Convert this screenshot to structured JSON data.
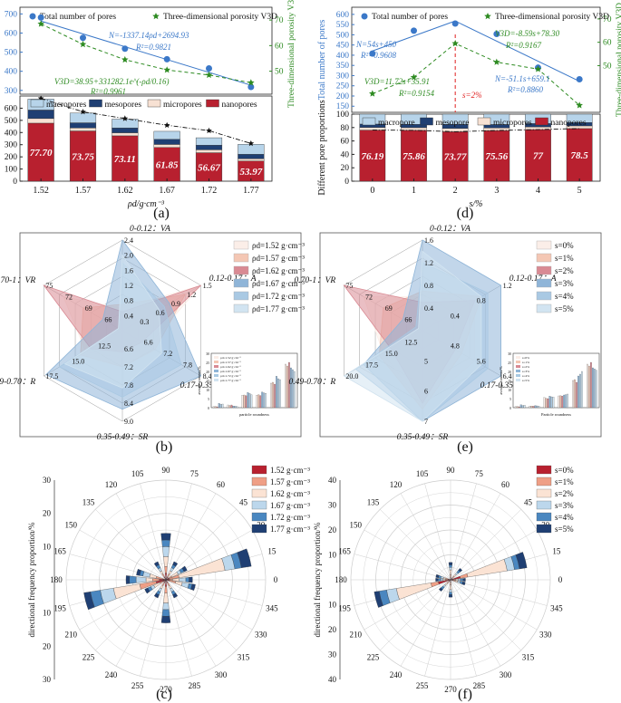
{
  "panel_labels": [
    "(a)",
    "(b)",
    "(c)",
    "(d)",
    "(e)",
    "(f)"
  ],
  "colors": {
    "blue_dot": "#3b78c8",
    "green": "#2e8b22",
    "nano": "#b8202f",
    "micro": "#f7e1d3",
    "meso": "#1f3f73",
    "macro": "#b7d4ea",
    "grid": "#d8d8d8"
  },
  "chart_data": [
    {
      "id": "a",
      "type": "bar",
      "xlabel": "ρd/g·cm⁻³",
      "ylabel_top": "Total number of pores",
      "ylabel_right": "Three-dimensional porosity V3D",
      "ylabel_bottom": "Different pore proportions",
      "categories": [
        "1.52",
        "1.57",
        "1.62",
        "1.67",
        "1.72",
        "1.77"
      ],
      "top_y_ticks": [
        "700",
        "600",
        "500",
        "400",
        "300"
      ],
      "right_y_ticks": [
        "70",
        "60",
        "50"
      ],
      "bottom_y_ticks": [
        "0",
        "100",
        "200",
        "300",
        "400",
        "500",
        "600"
      ],
      "legend_top": [
        "Total number of pores",
        "Three-dimensional porosity V3D"
      ],
      "legend_bottom": [
        "macropores",
        "mesopores",
        "micropores",
        "nanopores"
      ],
      "series": [
        {
          "name": "Total number of pores",
          "values": [
            681,
            575,
            518,
            463,
            415,
            318
          ]
        },
        {
          "name": "Three-dimensional porosity V3D",
          "values": [
            68.5,
            60.5,
            54.5,
            50.5,
            48.5,
            45.5
          ]
        }
      ],
      "bars": [
        {
          "nano": 477,
          "micro": 38,
          "meso": 70,
          "macro": 90,
          "label": "77.70"
        },
        {
          "nano": 413,
          "micro": 25,
          "meso": 42,
          "macro": 80,
          "label": "73.75"
        },
        {
          "nano": 373,
          "micro": 25,
          "meso": 40,
          "macro": 72,
          "label": "73.11"
        },
        {
          "nano": 277,
          "micro": 25,
          "meso": 42,
          "macro": 66,
          "label": "61.85"
        },
        {
          "nano": 234,
          "micro": 24,
          "meso": 38,
          "macro": 61,
          "label": "56.67"
        },
        {
          "nano": 166,
          "micro": 19,
          "meso": 36,
          "macro": 82,
          "label": "53.97"
        }
      ],
      "trend_totals": [
        680,
        570,
        515,
        460,
        415,
        310
      ],
      "annotations": [
        "N=-1337.14ρd+2694.93",
        "R²=0.9821",
        "V3D=38.95+331282.1e^(-ρd/0.16)",
        "R²=0.9961"
      ]
    },
    {
      "id": "d",
      "type": "bar",
      "xlabel": "s/%",
      "ylabel_top": "Total number of pores",
      "ylabel_right": "Three-dimensional porosity V3D",
      "ylabel_bottom": "Different pore proportions",
      "categories": [
        "0",
        "1",
        "2",
        "3",
        "4",
        "5"
      ],
      "top_y_ticks": [
        "600",
        "550",
        "500",
        "450",
        "400",
        "350",
        "300",
        "250",
        "200",
        "150"
      ],
      "right_y_ticks": [
        "70",
        "60",
        "50"
      ],
      "bottom_y_ticks": [
        "0",
        "20",
        "40",
        "60",
        "80",
        "100"
      ],
      "legend_top": [
        "Total number of pores",
        "Three-dimensional porosity V3D"
      ],
      "legend_bottom": [
        "macropore",
        "mesopore",
        "micropores",
        "nanopores"
      ],
      "series": [
        {
          "name": "Total number of pores",
          "values": [
            408,
            520,
            555,
            504,
            339,
            282
          ]
        },
        {
          "name": "Three-dimensional porosity V3D",
          "values": [
            38,
            45,
            59.5,
            51.5,
            48.5,
            33
          ]
        }
      ],
      "bars": [
        {
          "nano": 76.19,
          "micro": 4,
          "meso": 5,
          "macro": 14.81,
          "label": "76.19"
        },
        {
          "nano": 75.86,
          "micro": 4,
          "meso": 5,
          "macro": 15.14,
          "label": "75.86"
        },
        {
          "nano": 73.77,
          "micro": 5,
          "meso": 6,
          "macro": 15.23,
          "label": "73.77"
        },
        {
          "nano": 75.56,
          "micro": 4,
          "meso": 5,
          "macro": 15.44,
          "label": "75.56"
        },
        {
          "nano": 77,
          "micro": 4,
          "meso": 5,
          "macro": 14,
          "label": "77"
        },
        {
          "nano": 78.5,
          "micro": 4,
          "meso": 5,
          "macro": 12.5,
          "label": "78.5"
        }
      ],
      "trend_totals": [
        76.2,
        75.9,
        73.8,
        75.6,
        77,
        78.5
      ],
      "annotations": [
        "N=54s+450",
        "R²=0.9608",
        "V3D=11.72s+35.91",
        "R²=0.9154",
        "s=2%",
        "N=-51.1s+659.1",
        "R²=0.8860",
        "V3D=-8.59s+78.30",
        "R²=0.9167"
      ]
    },
    {
      "id": "b",
      "type": "radar",
      "axes": [
        "0-0.12：VA",
        "0.12-0.17：A",
        "0.17-0.35：SA",
        "0.35-0.49：SR",
        "0.49-0.70：R",
        "0.70-1：VR"
      ],
      "series_names": [
        "ρd=1.52 g·cm⁻³",
        "ρd=1.57 g·cm⁻³",
        "ρd=1.62 g·cm⁻³",
        "ρd=1.67 g·cm⁻³",
        "ρd=1.72 g·cm⁻³",
        "ρd=1.77 g·cm⁻³"
      ],
      "series_colors": [
        "#fbeee8",
        "#f4c7b4",
        "#d98a93",
        "#8fb5d8",
        "#a9c9e3",
        "#d2e4f1"
      ],
      "values": [
        [
          0.6,
          1.5,
          6.8,
          6.9,
          13.5,
          72
        ],
        [
          0.7,
          1.2,
          7.0,
          7.2,
          14.0,
          69
        ],
        [
          0.5,
          1.5,
          6.6,
          6.7,
          13.0,
          75
        ],
        [
          2.4,
          0.9,
          8.4,
          8.6,
          17.3,
          66
        ],
        [
          1.8,
          0.8,
          7.8,
          8.2,
          16.0,
          63
        ],
        [
          2.0,
          0.7,
          7.2,
          7.9,
          15.5,
          60
        ]
      ],
      "tick_labels": {
        "VA": [
          "0.4",
          "0.8",
          "1.2",
          "1.6",
          "2.0",
          "2.4"
        ],
        "A": [
          "0.3",
          "0.6",
          "0.9",
          "1.2",
          "1.5"
        ],
        "SA": [
          "6.6",
          "7.2",
          "7.8",
          "8.4"
        ],
        "SR": [
          "6.6",
          "7.2",
          "7.8",
          "8.4",
          "9.0"
        ],
        "R": [
          "12.5",
          "15.0",
          "17.5"
        ],
        "VR": [
          "66",
          "69",
          "72",
          "75"
        ]
      },
      "inset": {
        "xlabel": "particle roundness",
        "ylabel": "average contents/%",
        "legend": [
          "ρd=1.52 g·cm⁻³",
          "ρd=1.57 g·cm⁻³",
          "ρd=1.62 g·cm⁻³",
          "ρd=1.67 g·cm⁻³",
          "ρd=1.72 g·cm⁻³",
          "ρd=1.77 g·cm⁻³"
        ],
        "y_ticks": [
          "0",
          "5",
          "10",
          "15",
          "20",
          "25",
          "30"
        ]
      }
    },
    {
      "id": "e",
      "type": "radar",
      "axes": [
        "0-0.12：VA",
        "0.12-0.17：A",
        "0.17-0.35：SA",
        "0.35-0.49：SR",
        "0.49-0.70：R",
        "0.70-1：VR"
      ],
      "series_names": [
        "s=0%",
        "s=1%",
        "s=2%",
        "s=3%",
        "s=4%",
        "s=5%"
      ],
      "series_colors": [
        "#fbeee8",
        "#f4c7b4",
        "#d98a93",
        "#8fb5d8",
        "#a9c9e3",
        "#d2e4f1"
      ],
      "values": [
        [
          0.6,
          0.8,
          5.6,
          6.5,
          15.0,
          72
        ],
        [
          0.7,
          0.9,
          5.2,
          6.6,
          15.5,
          69
        ],
        [
          0.5,
          0.8,
          5.0,
          6.4,
          14.0,
          75
        ],
        [
          1.6,
          1.2,
          6.4,
          7.0,
          17.5,
          66
        ],
        [
          1.2,
          1.0,
          6.0,
          7.2,
          18.5,
          64
        ],
        [
          1.4,
          0.9,
          5.8,
          7.5,
          20.0,
          62
        ]
      ],
      "tick_labels": {
        "VA": [
          "0.4",
          "0.8",
          "1.2",
          "1.6"
        ],
        "A": [
          "0.4",
          "0.8",
          "1.2"
        ],
        "SA": [
          "4.8",
          "5.6",
          "6.4"
        ],
        "SR": [
          "5",
          "6",
          "7"
        ],
        "R": [
          "12.5",
          "15.0",
          "17.5",
          "20.0"
        ],
        "VR": [
          "66",
          "69",
          "72",
          "75"
        ]
      },
      "inset": {
        "xlabel": "Particle roundness",
        "ylabel": "average contents/%",
        "legend": [
          "s=0%",
          "s=1%",
          "s=2%",
          "s=3%",
          "s=4%",
          "s=5%"
        ],
        "y_ticks": [
          "0",
          "5",
          "10",
          "15",
          "20",
          "25",
          "30"
        ]
      }
    },
    {
      "id": "c",
      "type": "polar-bar",
      "radial_label": "directional frequency proportion/%",
      "radial_ticks": [
        "10",
        "20",
        "30"
      ],
      "series_names": [
        "1.52 g·cm⁻³",
        "1.57 g·cm⁻³",
        "1.62 g·cm⁻³",
        "1.67 g·cm⁻³",
        "1.72 g·cm⁻³",
        "1.77 g·cm⁻³"
      ],
      "series_colors": [
        "#b8202f",
        "#ef9f86",
        "#fbe3d4",
        "#bcd7ec",
        "#4a87c0",
        "#1f3f73"
      ],
      "sectors": [
        {
          "angle": 15,
          "vals": [
            1,
            3,
            14,
            3,
            2,
            3
          ]
        },
        {
          "angle": 195,
          "vals": [
            3,
            5,
            8,
            4,
            3,
            2
          ]
        },
        {
          "angle": 90,
          "vals": [
            2,
            2,
            3,
            3,
            2,
            2
          ]
        },
        {
          "angle": 270,
          "vals": [
            2,
            2,
            3,
            2,
            2,
            2
          ]
        },
        {
          "angle": 0,
          "vals": [
            1,
            1,
            2,
            2,
            1,
            1
          ]
        },
        {
          "angle": 180,
          "vals": [
            2,
            2,
            2,
            3,
            2,
            1
          ]
        },
        {
          "angle": 345,
          "vals": [
            1,
            2,
            2,
            2,
            1,
            1
          ]
        },
        {
          "angle": 165,
          "vals": [
            1,
            2,
            2,
            2,
            1,
            1
          ]
        },
        {
          "angle": 30,
          "vals": [
            1,
            1,
            2,
            1,
            1,
            1
          ]
        },
        {
          "angle": 210,
          "vals": [
            1,
            1,
            2,
            1,
            1,
            1
          ]
        },
        {
          "angle": 60,
          "vals": [
            1,
            1,
            1,
            1,
            1,
            1
          ]
        },
        {
          "angle": 120,
          "vals": [
            1,
            1,
            1,
            1,
            1,
            1
          ]
        },
        {
          "angle": 240,
          "vals": [
            1,
            1,
            1,
            1,
            1,
            1
          ]
        },
        {
          "angle": 300,
          "vals": [
            1,
            1,
            1,
            1,
            1,
            1
          ]
        }
      ]
    },
    {
      "id": "f",
      "type": "polar-bar",
      "radial_label": "directional frequency proportion/%",
      "radial_ticks": [
        "10",
        "20",
        "30",
        "40"
      ],
      "series_names": [
        "s=0%",
        "s=1%",
        "s=2%",
        "s=3%",
        "s=4%",
        "s=5%"
      ],
      "series_colors": [
        "#b8202f",
        "#ef9f86",
        "#fbe3d4",
        "#bcd7ec",
        "#4a87c0",
        "#1f3f73"
      ],
      "sectors": [
        {
          "angle": 15,
          "vals": [
            4,
            3,
            16,
            3,
            2,
            3
          ]
        },
        {
          "angle": 195,
          "vals": [
            5,
            3,
            14,
            4,
            3,
            2
          ]
        },
        {
          "angle": 90,
          "vals": [
            1,
            1,
            2,
            1,
            1,
            1
          ]
        },
        {
          "angle": 270,
          "vals": [
            1,
            1,
            2,
            1,
            1,
            1
          ]
        },
        {
          "angle": 0,
          "vals": [
            1,
            1,
            1,
            1,
            1,
            1
          ]
        },
        {
          "angle": 180,
          "vals": [
            1,
            1,
            1,
            1,
            1,
            1
          ]
        },
        {
          "angle": 345,
          "vals": [
            1,
            1,
            1,
            1,
            1,
            1
          ]
        },
        {
          "angle": 165,
          "vals": [
            1,
            1,
            1,
            1,
            1,
            1
          ]
        },
        {
          "angle": 45,
          "vals": [
            1,
            1,
            1,
            1,
            1,
            1
          ]
        },
        {
          "angle": 225,
          "vals": [
            1,
            1,
            1,
            1,
            1,
            1
          ]
        }
      ]
    }
  ]
}
